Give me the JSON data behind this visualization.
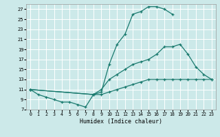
{
  "xlabel": "Humidex (Indice chaleur)",
  "bg_color": "#cce9e9",
  "grid_color": "#ffffff",
  "line_color": "#1a7a6e",
  "xlim": [
    -0.5,
    23.5
  ],
  "ylim": [
    7,
    28
  ],
  "xticks": [
    0,
    1,
    2,
    3,
    4,
    5,
    6,
    7,
    8,
    9,
    10,
    11,
    12,
    13,
    14,
    15,
    16,
    17,
    18,
    19,
    20,
    21,
    22,
    23
  ],
  "yticks": [
    7,
    9,
    11,
    13,
    15,
    17,
    19,
    21,
    23,
    25,
    27
  ],
  "line1_x": [
    0,
    1,
    2,
    3,
    4,
    5,
    6,
    7,
    8,
    9,
    10,
    11,
    12,
    13,
    14,
    15,
    16,
    17,
    18
  ],
  "line1_y": [
    11,
    10,
    9.5,
    9,
    8.5,
    8.5,
    8,
    7.5,
    10,
    10.5,
    16,
    20,
    22,
    26,
    26.5,
    27.5,
    27.5,
    27,
    26
  ],
  "line2_x": [
    0,
    8,
    9,
    10,
    11,
    12,
    13,
    14,
    15,
    16,
    17,
    18,
    19,
    20,
    21,
    22,
    23
  ],
  "line2_y": [
    11,
    10,
    11,
    13,
    14,
    15,
    16,
    16.5,
    17,
    18,
    19.5,
    19.5,
    20,
    18,
    15.5,
    14,
    13
  ],
  "line3_x": [
    0,
    8,
    9,
    10,
    11,
    12,
    13,
    14,
    15,
    16,
    17,
    18,
    19,
    20,
    21,
    22,
    23
  ],
  "line3_y": [
    11,
    10,
    10,
    10.5,
    11,
    11.5,
    12,
    12.5,
    13,
    13,
    13,
    13,
    13,
    13,
    13,
    13,
    13
  ]
}
